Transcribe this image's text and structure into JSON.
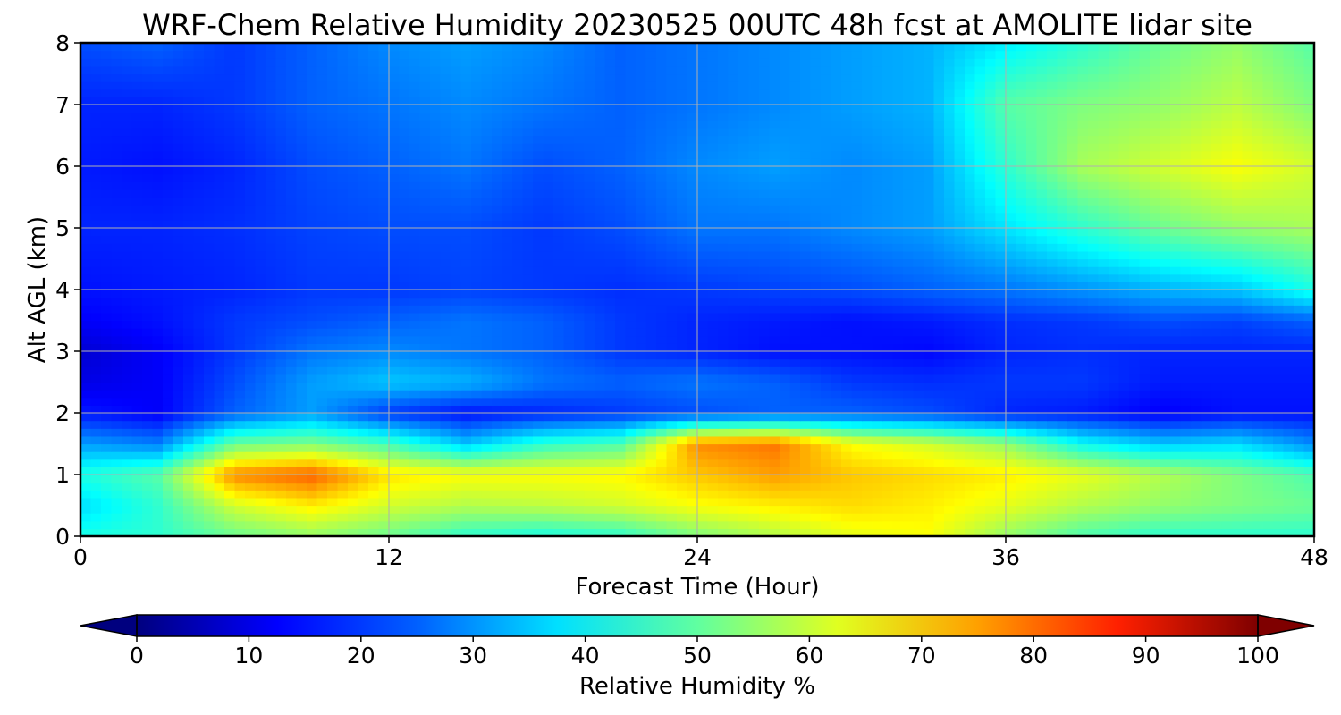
{
  "chart_data": {
    "type": "heatmap",
    "title": "WRF-Chem Relative Humidity 20230525 00UTC 48h fcst at AMOLITE lidar site",
    "xlabel": "Forecast Time (Hour)",
    "ylabel": "Alt AGL (km)",
    "xlim": [
      0,
      48
    ],
    "ylim": [
      0,
      8
    ],
    "xticks": [
      "0",
      "12",
      "24",
      "36",
      "48"
    ],
    "yticks": [
      "0",
      "1",
      "2",
      "3",
      "4",
      "5",
      "6",
      "7",
      "8"
    ],
    "grid": true,
    "colormap": "jet",
    "colorbar": {
      "label": "Relative Humidity %",
      "range": [
        0,
        100
      ],
      "ticks": [
        "0",
        "10",
        "20",
        "30",
        "40",
        "50",
        "60",
        "70",
        "80",
        "90",
        "100"
      ],
      "extend": "both",
      "orientation": "horizontal"
    },
    "x": [
      0,
      3,
      6,
      9,
      12,
      15,
      18,
      21,
      24,
      27,
      30,
      33,
      36,
      39,
      42,
      45,
      48
    ],
    "y": [
      0,
      0.5,
      1,
      1.5,
      2,
      2.5,
      3,
      3.5,
      4,
      5,
      6,
      7,
      8
    ],
    "values": [
      [
        40,
        42,
        48,
        52,
        48,
        42,
        40,
        42,
        50,
        55,
        60,
        62,
        52,
        45,
        42,
        42,
        42
      ],
      [
        34,
        42,
        58,
        64,
        58,
        55,
        56,
        58,
        62,
        64,
        66,
        64,
        60,
        55,
        52,
        50,
        48
      ],
      [
        40,
        46,
        74,
        78,
        65,
        62,
        62,
        63,
        68,
        72,
        68,
        66,
        64,
        60,
        55,
        50,
        45
      ],
      [
        28,
        25,
        48,
        50,
        44,
        32,
        42,
        45,
        74,
        76,
        62,
        58,
        52,
        38,
        32,
        34,
        26
      ],
      [
        15,
        12,
        22,
        28,
        18,
        14,
        16,
        18,
        20,
        22,
        22,
        20,
        16,
        15,
        12,
        14,
        14
      ],
      [
        10,
        12,
        20,
        28,
        32,
        30,
        24,
        22,
        24,
        22,
        18,
        17,
        18,
        18,
        15,
        15,
        15
      ],
      [
        8,
        12,
        18,
        24,
        26,
        24,
        22,
        18,
        16,
        14,
        14,
        13,
        16,
        17,
        16,
        16,
        16
      ],
      [
        12,
        14,
        18,
        20,
        22,
        24,
        22,
        18,
        16,
        15,
        14,
        15,
        17,
        18,
        20,
        19,
        22
      ],
      [
        14,
        15,
        16,
        18,
        18,
        19,
        18,
        17,
        18,
        19,
        20,
        22,
        24,
        27,
        30,
        32,
        40
      ],
      [
        16,
        16,
        17,
        19,
        20,
        20,
        18,
        20,
        24,
        24,
        26,
        28,
        35,
        42,
        48,
        52,
        54
      ],
      [
        15,
        14,
        16,
        20,
        22,
        24,
        20,
        22,
        26,
        28,
        26,
        28,
        42,
        54,
        58,
        62,
        58
      ],
      [
        16,
        16,
        18,
        22,
        24,
        26,
        24,
        22,
        24,
        26,
        28,
        30,
        46,
        50,
        52,
        56,
        50
      ],
      [
        20,
        22,
        18,
        22,
        26,
        28,
        26,
        22,
        24,
        26,
        28,
        30,
        36,
        42,
        48,
        52,
        46
      ]
    ]
  }
}
